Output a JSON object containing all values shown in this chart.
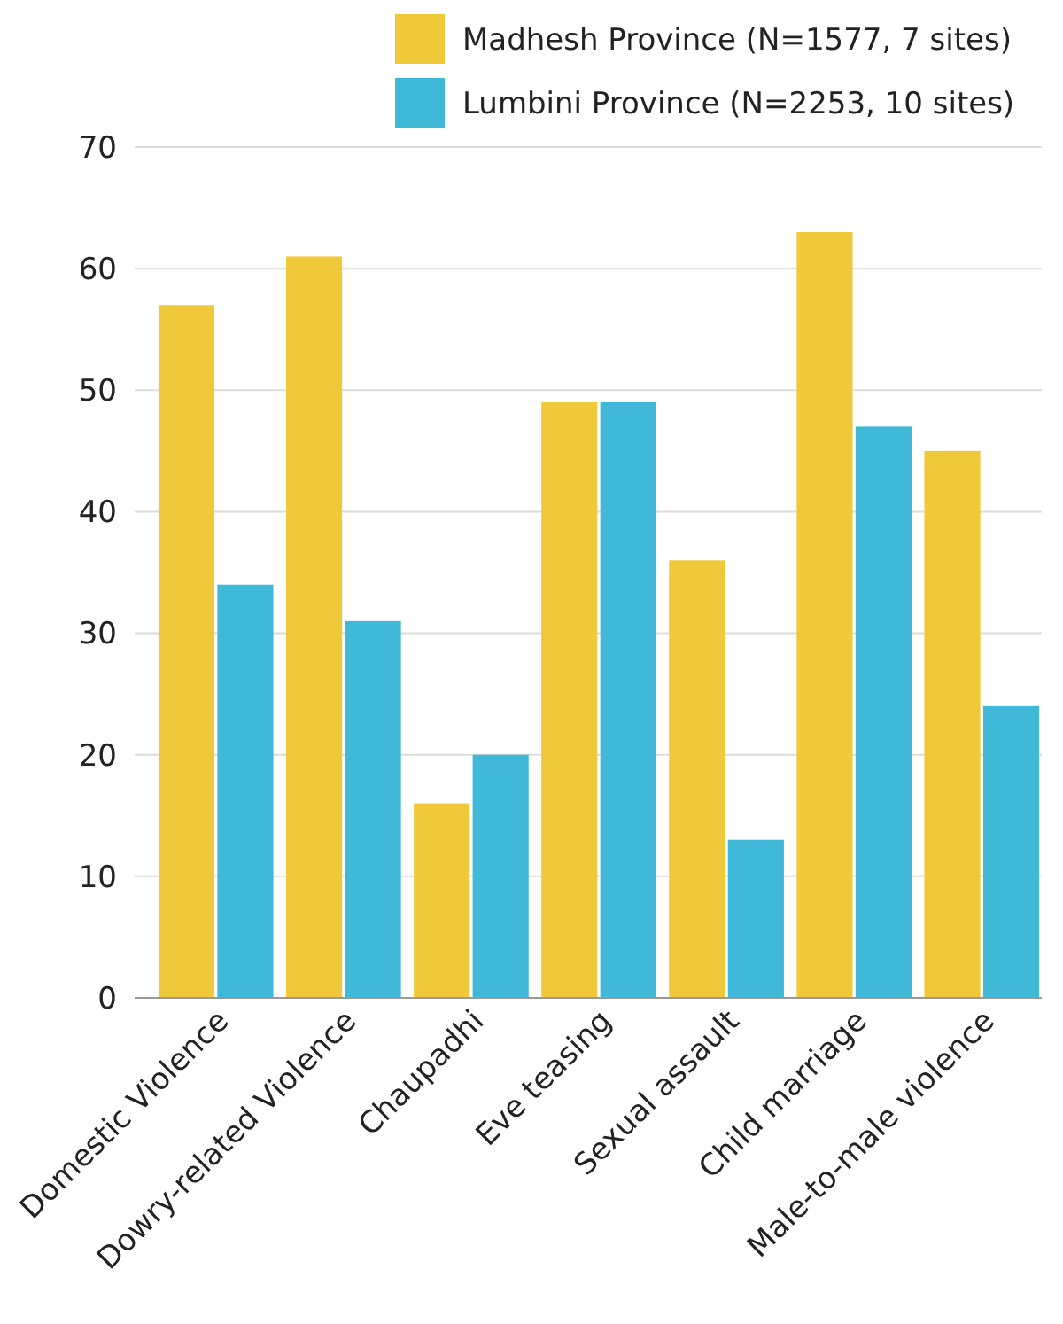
{
  "chart_data": {
    "type": "bar",
    "categories": [
      "Domestic Violence",
      "Dowry-related Violence",
      "Chaupadhi",
      "Eve teasing",
      "Sexual assault",
      "Child marriage",
      "Male-to-male violence"
    ],
    "series": [
      {
        "name": "Madhesh Province (N=1577, 7 sites)",
        "color": "#f0c93a",
        "values": [
          57,
          61,
          16,
          49,
          36,
          63,
          45
        ]
      },
      {
        "name": "Lumbini Province (N=2253, 10 sites)",
        "color": "#40b8d8",
        "values": [
          34,
          31,
          20,
          49,
          13,
          47,
          24
        ]
      }
    ],
    "ylim": [
      0,
      70
    ],
    "yticks": [
      0,
      10,
      20,
      30,
      40,
      50,
      60,
      70
    ],
    "grid": "y",
    "legend": "top"
  }
}
